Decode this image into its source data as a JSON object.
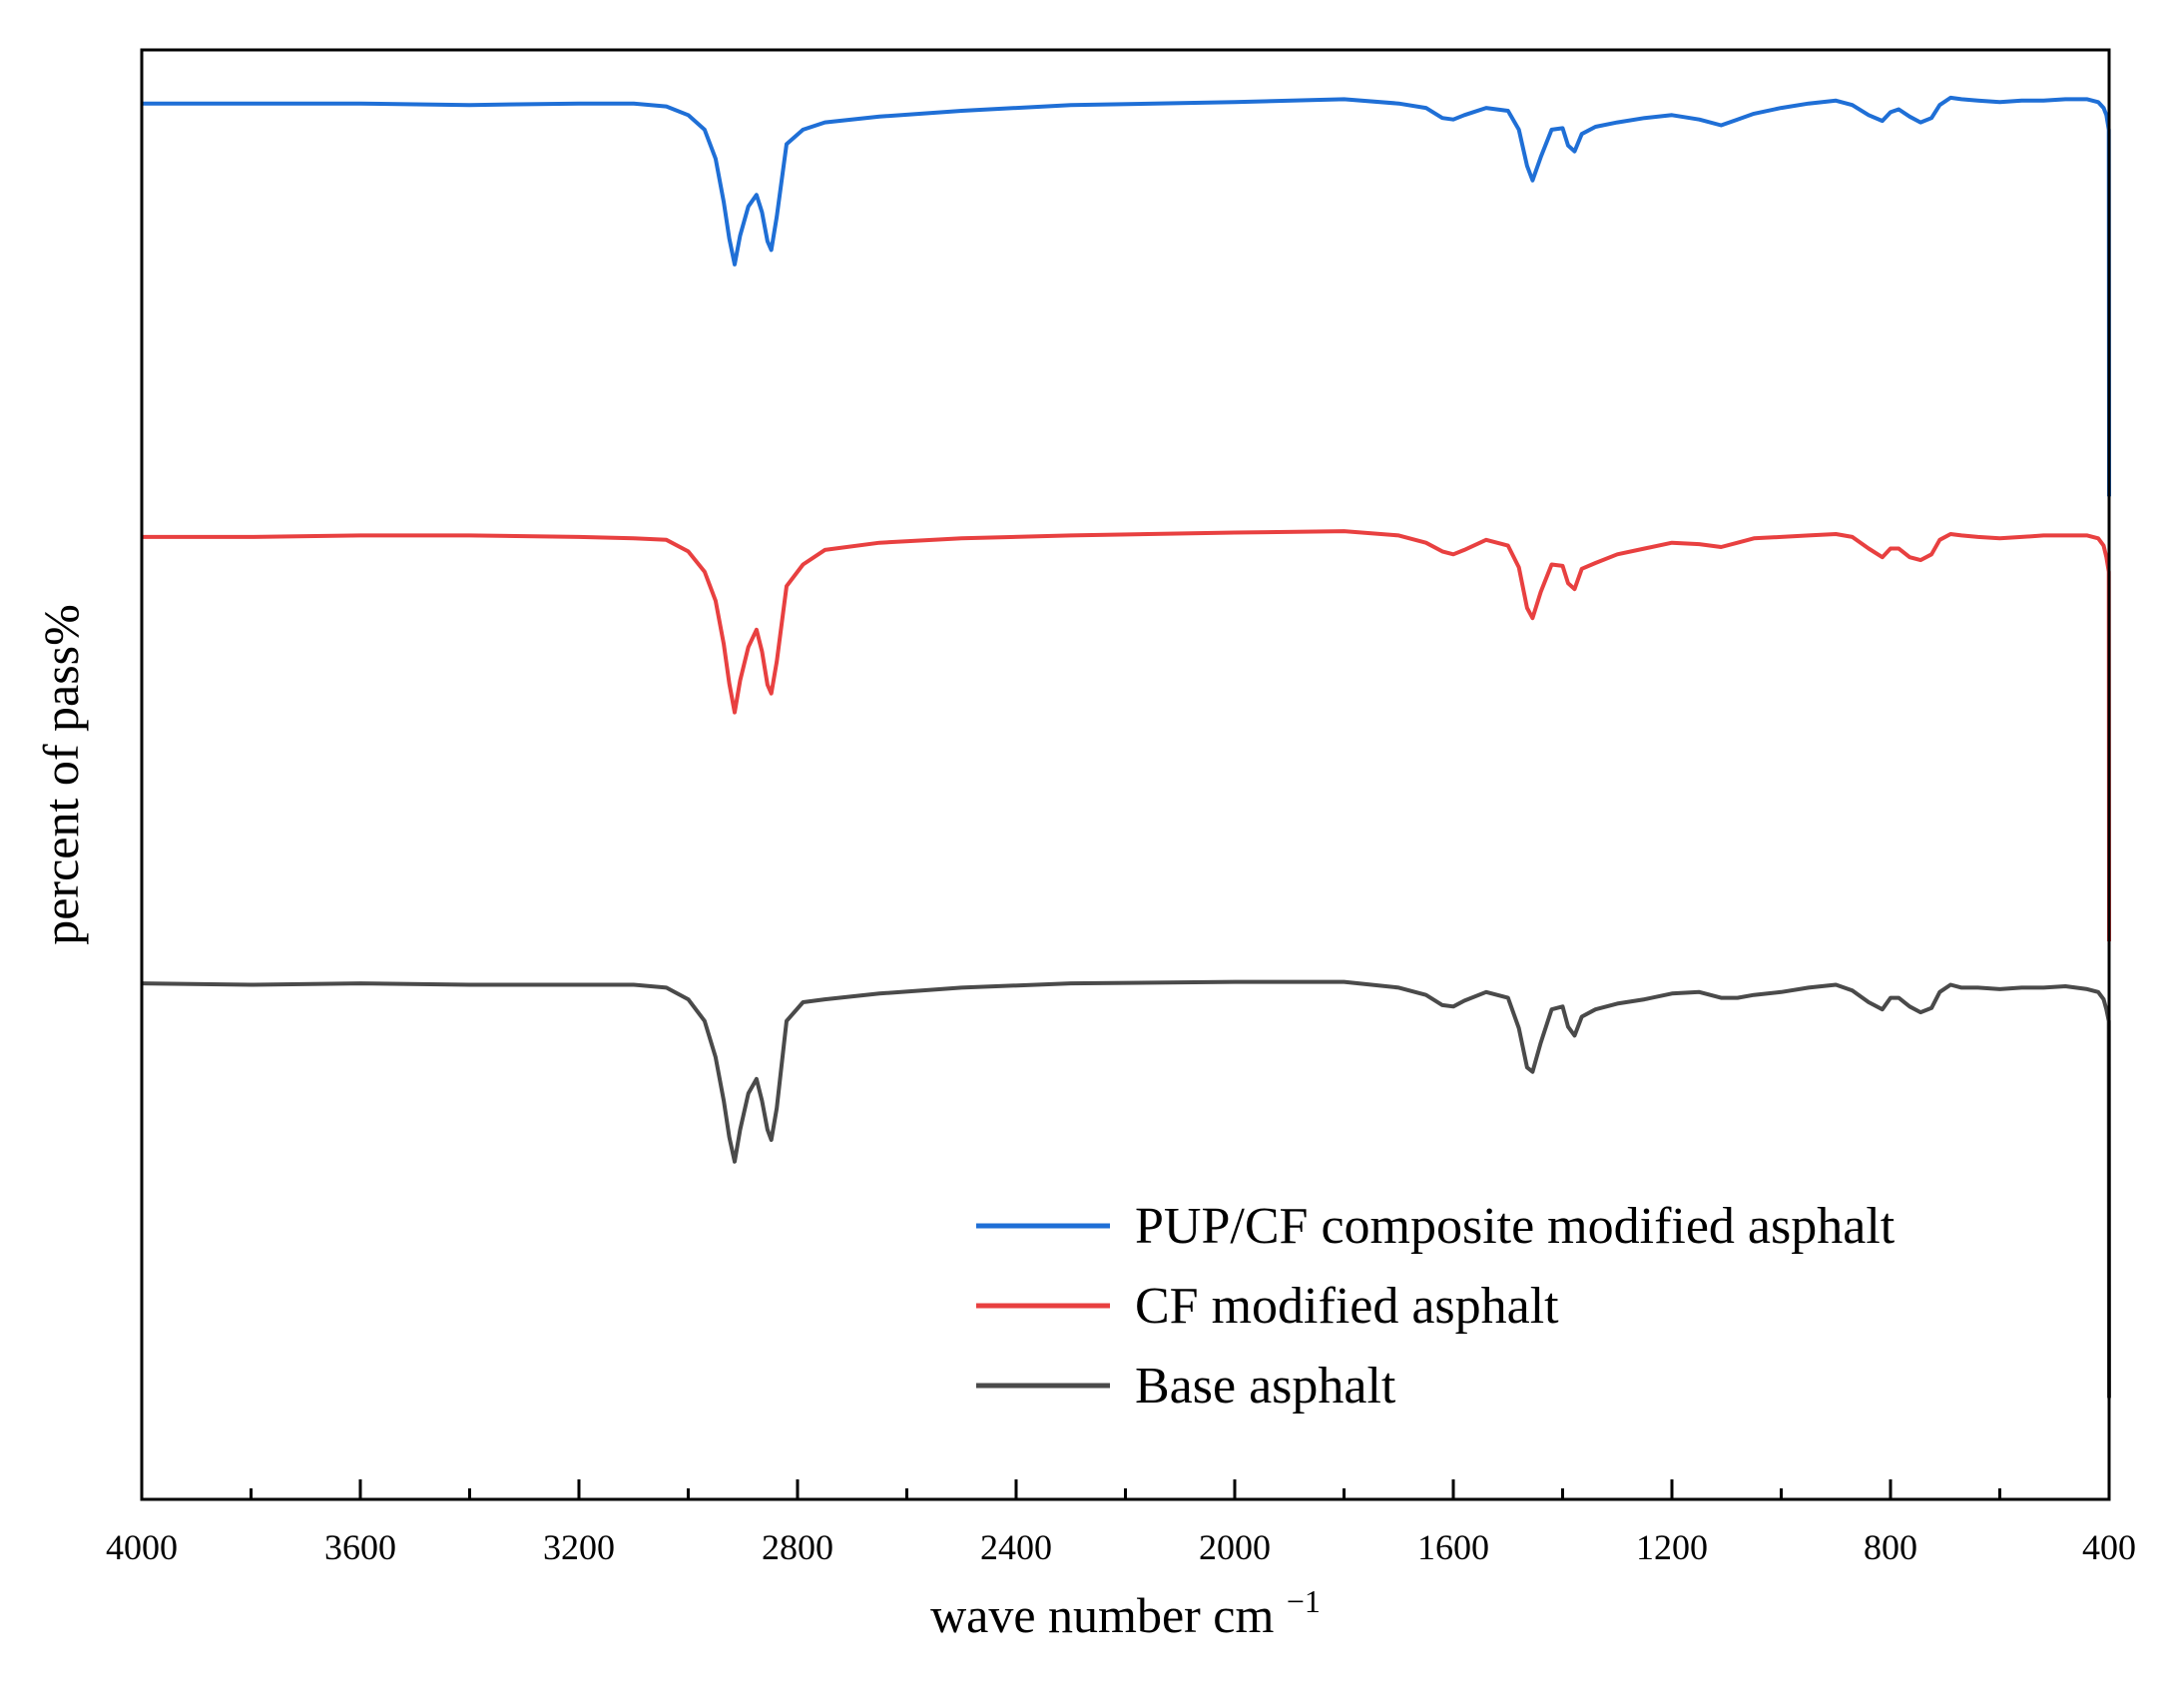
{
  "chart_data": {
    "type": "line",
    "title": "",
    "xlabel": "wave number cm",
    "xlabel_superscript": "−1",
    "ylabel": "percent of pass%",
    "xlim": [
      4000,
      400
    ],
    "x_reversed": true,
    "xticks": [
      4000,
      3600,
      3200,
      2800,
      2400,
      2000,
      1600,
      1200,
      800,
      400
    ],
    "ylim": [
      0,
      100
    ],
    "y_ticks_shown": false,
    "grid": false,
    "legend_position": "bottom-right",
    "series": [
      {
        "name": "PUP/CF composite modified asphalt",
        "color": "#1f6fd6",
        "x": [
          4000,
          3800,
          3600,
          3400,
          3200,
          3100,
          3040,
          3000,
          2970,
          2950,
          2935,
          2925,
          2915,
          2905,
          2890,
          2875,
          2865,
          2855,
          2848,
          2838,
          2820,
          2790,
          2750,
          2650,
          2500,
          2300,
          2000,
          1800,
          1700,
          1650,
          1620,
          1600,
          1580,
          1540,
          1500,
          1480,
          1465,
          1455,
          1440,
          1420,
          1400,
          1390,
          1378,
          1365,
          1340,
          1300,
          1250,
          1200,
          1150,
          1110,
          1080,
          1050,
          1000,
          950,
          900,
          870,
          840,
          815,
          800,
          785,
          765,
          745,
          725,
          710,
          690,
          670,
          640,
          600,
          560,
          520,
          480,
          440,
          420,
          410,
          405,
          400.5,
          400
        ],
        "y": [
          96.3,
          96.3,
          96.3,
          96.2,
          96.3,
          96.3,
          96.1,
          95.5,
          94.5,
          92.5,
          89.5,
          87.0,
          85.2,
          87.2,
          89.2,
          90.0,
          88.8,
          86.8,
          86.2,
          88.5,
          93.5,
          94.5,
          95.0,
          95.4,
          95.8,
          96.2,
          96.4,
          96.6,
          96.3,
          96.0,
          95.3,
          95.2,
          95.5,
          96.0,
          95.8,
          94.5,
          92.0,
          91.0,
          92.6,
          94.5,
          94.6,
          93.4,
          93.0,
          94.2,
          94.7,
          95.0,
          95.3,
          95.5,
          95.2,
          94.8,
          95.2,
          95.6,
          96.0,
          96.3,
          96.5,
          96.2,
          95.5,
          95.1,
          95.7,
          95.9,
          95.4,
          95.0,
          95.3,
          96.2,
          96.7,
          96.6,
          96.5,
          96.4,
          96.5,
          96.5,
          96.6,
          96.6,
          96.4,
          96.0,
          95.5,
          94.5,
          69.2
        ]
      },
      {
        "name": "CF modified asphalt",
        "color": "#e84040",
        "x": [
          4000,
          3800,
          3600,
          3400,
          3200,
          3100,
          3040,
          3000,
          2970,
          2950,
          2935,
          2925,
          2915,
          2905,
          2890,
          2875,
          2865,
          2855,
          2848,
          2838,
          2820,
          2790,
          2750,
          2650,
          2500,
          2300,
          2000,
          1800,
          1700,
          1650,
          1620,
          1600,
          1580,
          1540,
          1500,
          1480,
          1465,
          1455,
          1440,
          1420,
          1400,
          1390,
          1378,
          1365,
          1340,
          1300,
          1250,
          1200,
          1150,
          1110,
          1080,
          1050,
          1000,
          950,
          900,
          870,
          840,
          815,
          800,
          785,
          765,
          745,
          725,
          710,
          690,
          670,
          640,
          600,
          560,
          520,
          480,
          440,
          420,
          410,
          405,
          400.5,
          400
        ],
        "y": [
          66.4,
          66.4,
          66.5,
          66.5,
          66.4,
          66.3,
          66.2,
          65.4,
          64.0,
          62.0,
          59.0,
          56.3,
          54.3,
          56.5,
          58.8,
          60.0,
          58.5,
          56.2,
          55.6,
          57.8,
          63.0,
          64.5,
          65.5,
          66.0,
          66.3,
          66.5,
          66.7,
          66.8,
          66.5,
          66.0,
          65.4,
          65.2,
          65.5,
          66.2,
          65.8,
          64.3,
          61.5,
          60.8,
          62.6,
          64.5,
          64.4,
          63.2,
          62.8,
          64.2,
          64.6,
          65.2,
          65.6,
          66.0,
          65.9,
          65.7,
          66.0,
          66.3,
          66.4,
          66.5,
          66.6,
          66.4,
          65.6,
          65.0,
          65.6,
          65.6,
          65.0,
          64.8,
          65.2,
          66.2,
          66.6,
          66.5,
          66.4,
          66.3,
          66.4,
          66.5,
          66.5,
          66.5,
          66.3,
          65.8,
          65.0,
          64.0,
          38.5
        ]
      },
      {
        "name": "Base asphalt",
        "color": "#4a4a4a",
        "x": [
          4000,
          3800,
          3600,
          3400,
          3200,
          3100,
          3040,
          3000,
          2970,
          2950,
          2935,
          2925,
          2915,
          2905,
          2890,
          2875,
          2865,
          2855,
          2848,
          2838,
          2820,
          2790,
          2750,
          2650,
          2500,
          2300,
          2000,
          1800,
          1700,
          1650,
          1620,
          1600,
          1580,
          1540,
          1500,
          1480,
          1465,
          1455,
          1440,
          1420,
          1400,
          1390,
          1378,
          1365,
          1340,
          1300,
          1250,
          1200,
          1150,
          1110,
          1080,
          1050,
          1000,
          950,
          900,
          870,
          840,
          815,
          800,
          785,
          765,
          745,
          725,
          710,
          690,
          670,
          640,
          600,
          560,
          520,
          480,
          440,
          420,
          410,
          405,
          400.5,
          400
        ],
        "y": [
          35.6,
          35.5,
          35.6,
          35.5,
          35.5,
          35.5,
          35.3,
          34.5,
          33.0,
          30.5,
          27.5,
          25.0,
          23.3,
          25.5,
          28.0,
          29.0,
          27.5,
          25.5,
          24.8,
          27.0,
          33.0,
          34.3,
          34.5,
          34.9,
          35.3,
          35.6,
          35.7,
          35.7,
          35.3,
          34.8,
          34.1,
          34.0,
          34.4,
          35.0,
          34.6,
          32.5,
          29.8,
          29.5,
          31.5,
          33.8,
          34.0,
          32.6,
          32.0,
          33.3,
          33.8,
          34.2,
          34.5,
          34.9,
          35.0,
          34.6,
          34.6,
          34.8,
          35.0,
          35.3,
          35.5,
          35.1,
          34.3,
          33.8,
          34.6,
          34.6,
          34.0,
          33.6,
          33.9,
          35.0,
          35.5,
          35.3,
          35.3,
          35.2,
          35.3,
          35.3,
          35.4,
          35.2,
          35.0,
          34.5,
          33.8,
          33.0,
          7.0
        ]
      }
    ]
  }
}
